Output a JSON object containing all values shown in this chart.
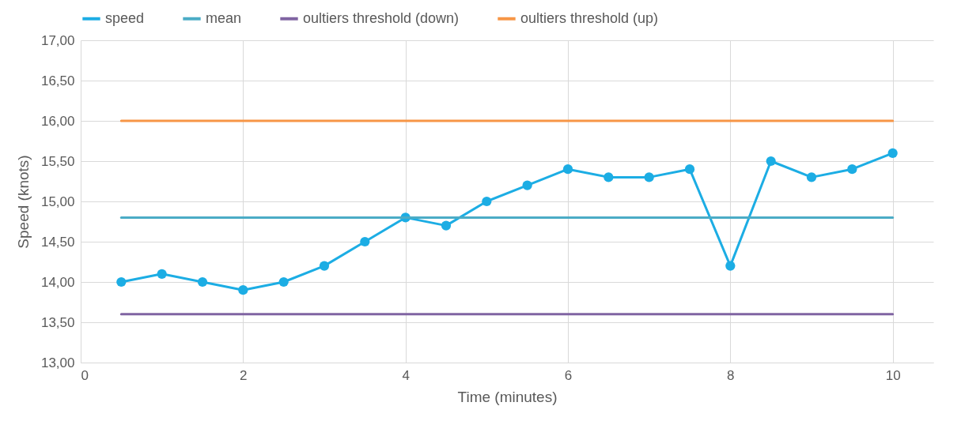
{
  "chart_data": {
    "type": "line",
    "xlabel": "Time (minutes)",
    "ylabel": "Speed (knots)",
    "x": [
      0.5,
      1,
      1.5,
      2,
      2.5,
      3,
      3.5,
      4,
      4.5,
      5,
      5.5,
      6,
      6.5,
      7,
      7.5,
      8,
      8.5,
      9,
      9.5,
      10
    ],
    "series": [
      {
        "name": "speed",
        "color": "#1cade4",
        "marker": "circle",
        "values": [
          14.0,
          14.1,
          14.0,
          13.9,
          14.0,
          14.2,
          14.5,
          14.8,
          14.7,
          15.0,
          15.2,
          15.4,
          15.3,
          15.3,
          15.4,
          14.2,
          15.5,
          15.3,
          15.4,
          15.6
        ]
      },
      {
        "name": "mean",
        "color": "#4bacc6",
        "marker": "none",
        "values": [
          14.8,
          14.8,
          14.8,
          14.8,
          14.8,
          14.8,
          14.8,
          14.8,
          14.8,
          14.8,
          14.8,
          14.8,
          14.8,
          14.8,
          14.8,
          14.8,
          14.8,
          14.8,
          14.8,
          14.8
        ]
      },
      {
        "name": "oultiers threshold (down)",
        "color": "#8064a2",
        "marker": "none",
        "values": [
          13.6,
          13.6,
          13.6,
          13.6,
          13.6,
          13.6,
          13.6,
          13.6,
          13.6,
          13.6,
          13.6,
          13.6,
          13.6,
          13.6,
          13.6,
          13.6,
          13.6,
          13.6,
          13.6,
          13.6
        ]
      },
      {
        "name": "oultiers threshold (up)",
        "color": "#f79646",
        "marker": "none",
        "values": [
          16.0,
          16.0,
          16.0,
          16.0,
          16.0,
          16.0,
          16.0,
          16.0,
          16.0,
          16.0,
          16.0,
          16.0,
          16.0,
          16.0,
          16.0,
          16.0,
          16.0,
          16.0,
          16.0,
          16.0
        ]
      }
    ],
    "xlim": [
      0,
      10.5
    ],
    "xticks": [
      0,
      2,
      4,
      6,
      8,
      10
    ],
    "ylim": [
      13,
      17
    ],
    "yticks": [
      {
        "value": 13,
        "label": "13,00"
      },
      {
        "value": 13.5,
        "label": "13,50"
      },
      {
        "value": 14,
        "label": "14,00"
      },
      {
        "value": 14.5,
        "label": "14,50"
      },
      {
        "value": 15,
        "label": "15,00"
      },
      {
        "value": 15.5,
        "label": "15,50"
      },
      {
        "value": 16,
        "label": "16,00"
      },
      {
        "value": 16.5,
        "label": "16,50"
      },
      {
        "value": 17,
        "label": "17,00"
      }
    ],
    "grid": true,
    "legend": "top",
    "line_style": "solid"
  }
}
